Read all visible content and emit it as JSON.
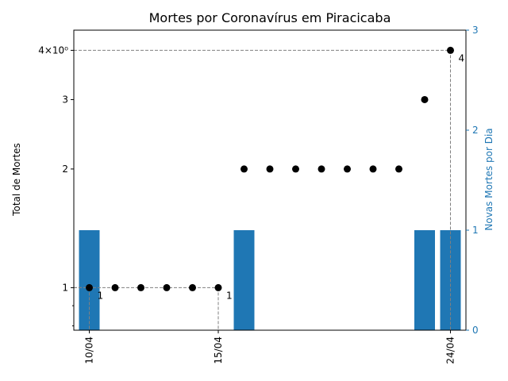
{
  "chart_data": {
    "type": "bar+scatter",
    "title": "Mortes por Coronavírus em Piracicaba",
    "ylabel_left": "Total de Mortes",
    "ylabel_right": "Novas Mortes por Dia",
    "left_scale": "log",
    "left_ylim": [
      0.78,
      4.5
    ],
    "left_ticks": [
      {
        "value": 1,
        "label": "1"
      },
      {
        "value": 2,
        "label": "2"
      },
      {
        "value": 3,
        "label": "3"
      },
      {
        "value": 4,
        "label": "4×10⁰"
      }
    ],
    "right_ylim": [
      0,
      3
    ],
    "right_ticks": [
      "0",
      "1",
      "2",
      "3"
    ],
    "x_ticks": [
      {
        "day": 10,
        "label": "10/04"
      },
      {
        "day": 15,
        "label": "15/04"
      },
      {
        "day": 24,
        "label": "24/04"
      }
    ],
    "x_range": [
      9.4,
      24.6
    ],
    "series": [
      {
        "name": "Total de Mortes",
        "type": "scatter",
        "axis": "left",
        "color": "#000000",
        "days": [
          10,
          11,
          12,
          13,
          14,
          15,
          16,
          17,
          18,
          19,
          20,
          21,
          22,
          23,
          24
        ],
        "values": [
          1,
          1,
          1,
          1,
          1,
          1,
          2,
          2,
          2,
          2,
          2,
          2,
          2,
          3,
          4
        ]
      },
      {
        "name": "Novas Mortes por Dia",
        "type": "bar",
        "axis": "right",
        "color": "#1f77b4",
        "days": [
          10,
          16,
          23,
          24
        ],
        "values": [
          1,
          1,
          1,
          1
        ]
      }
    ],
    "annotations": [
      {
        "day": 10,
        "value": 1,
        "text": "1"
      },
      {
        "day": 15,
        "value": 1,
        "text": "1"
      },
      {
        "day": 24,
        "value": 4,
        "text": "4"
      }
    ],
    "reference_lines": [
      {
        "day": 10,
        "value": 1
      },
      {
        "day": 15,
        "value": 1
      },
      {
        "day": 24,
        "value": 4
      }
    ]
  }
}
